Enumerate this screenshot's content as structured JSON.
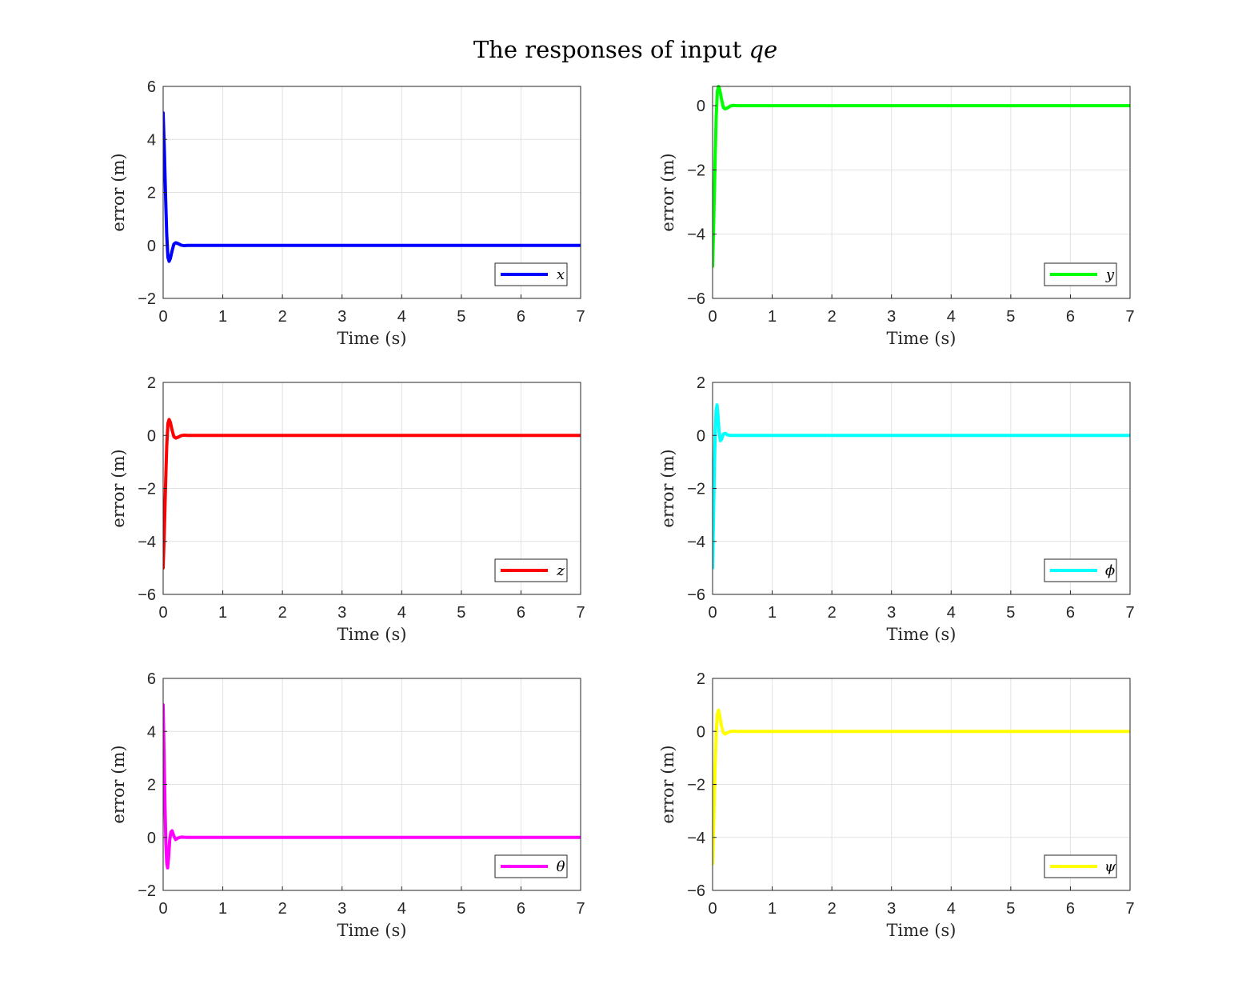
{
  "figure": {
    "title_prefix": "The responses of input ",
    "title_var": "qe"
  },
  "chart_data": [
    {
      "type": "line",
      "xlabel": "Time (s)",
      "ylabel": "error (m)",
      "xlim": [
        0,
        7
      ],
      "ylim": [
        -2,
        6
      ],
      "xticks": [
        0,
        1,
        2,
        3,
        4,
        5,
        6,
        7
      ],
      "yticks": [
        -2,
        0,
        2,
        4,
        6
      ],
      "grid": true,
      "legend_position": "bottom-right",
      "series": [
        {
          "name": "x",
          "color": "#0000ff",
          "x": [
            0,
            0.02,
            0.04,
            0.06,
            0.08,
            0.1,
            0.12,
            0.15,
            0.18,
            0.21,
            0.25,
            0.3,
            0.35,
            0.4,
            0.5,
            7
          ],
          "y": [
            5,
            3.6,
            1.9,
            0.4,
            -0.45,
            -0.6,
            -0.5,
            -0.2,
            0.05,
            0.1,
            0.07,
            0.01,
            -0.01,
            0,
            0,
            0
          ]
        }
      ]
    },
    {
      "type": "line",
      "xlabel": "Time (s)",
      "ylabel": "error (m)",
      "xlim": [
        0,
        7
      ],
      "ylim": [
        -6,
        0.6
      ],
      "xticks": [
        0,
        1,
        2,
        3,
        4,
        5,
        6,
        7
      ],
      "yticks": [
        -6,
        -4,
        -2,
        0
      ],
      "grid": true,
      "legend_position": "bottom-right",
      "series": [
        {
          "name": "y",
          "color": "#00ff00",
          "x": [
            0,
            0.02,
            0.04,
            0.06,
            0.08,
            0.1,
            0.12,
            0.15,
            0.18,
            0.21,
            0.25,
            0.3,
            0.35,
            0.4,
            0.5,
            7
          ],
          "y": [
            -5,
            -3.6,
            -1.9,
            -0.4,
            0.45,
            0.6,
            0.5,
            0.2,
            -0.05,
            -0.1,
            -0.07,
            -0.01,
            0.01,
            0,
            0,
            0
          ]
        }
      ]
    },
    {
      "type": "line",
      "xlabel": "Time (s)",
      "ylabel": "error (m)",
      "xlim": [
        0,
        7
      ],
      "ylim": [
        -6,
        2
      ],
      "xticks": [
        0,
        1,
        2,
        3,
        4,
        5,
        6,
        7
      ],
      "yticks": [
        -6,
        -4,
        -2,
        0,
        2
      ],
      "grid": true,
      "legend_position": "bottom-right",
      "series": [
        {
          "name": "z",
          "color": "#ff0000",
          "x": [
            0,
            0.02,
            0.04,
            0.06,
            0.08,
            0.1,
            0.12,
            0.15,
            0.18,
            0.21,
            0.25,
            0.3,
            0.35,
            0.4,
            0.5,
            7
          ],
          "y": [
            -5,
            -3.6,
            -1.9,
            -0.4,
            0.45,
            0.6,
            0.5,
            0.2,
            -0.05,
            -0.1,
            -0.07,
            -0.01,
            0.01,
            0,
            0,
            0
          ]
        }
      ]
    },
    {
      "type": "line",
      "xlabel": "Time (s)",
      "ylabel": "error (m)",
      "xlim": [
        0,
        7
      ],
      "ylim": [
        -6,
        2
      ],
      "xticks": [
        0,
        1,
        2,
        3,
        4,
        5,
        6,
        7
      ],
      "yticks": [
        -6,
        -4,
        -2,
        0,
        2
      ],
      "grid": true,
      "legend_position": "bottom-right",
      "series": [
        {
          "name": "ϕ",
          "color": "#00ffff",
          "x": [
            0,
            0.015,
            0.03,
            0.045,
            0.06,
            0.075,
            0.09,
            0.11,
            0.13,
            0.15,
            0.18,
            0.21,
            0.25,
            0.3,
            0.4,
            7
          ],
          "y": [
            -5,
            -3.2,
            -1.3,
            0.2,
            0.95,
            1.15,
            0.8,
            0.1,
            -0.2,
            -0.15,
            0.05,
            0.08,
            0.02,
            0,
            0,
            0
          ]
        }
      ]
    },
    {
      "type": "line",
      "xlabel": "Time (s)",
      "ylabel": "error (m)",
      "xlim": [
        0,
        7
      ],
      "ylim": [
        -2,
        6
      ],
      "xticks": [
        0,
        1,
        2,
        3,
        4,
        5,
        6,
        7
      ],
      "yticks": [
        -2,
        0,
        2,
        4,
        6
      ],
      "grid": true,
      "legend_position": "bottom-right",
      "series": [
        {
          "name": "θ",
          "color": "#ff00ff",
          "x": [
            0,
            0.015,
            0.03,
            0.045,
            0.06,
            0.075,
            0.09,
            0.11,
            0.13,
            0.15,
            0.18,
            0.21,
            0.25,
            0.3,
            0.4,
            7
          ],
          "y": [
            5,
            3.2,
            1.3,
            -0.2,
            -0.95,
            -1.15,
            -0.8,
            -0.1,
            0.2,
            0.25,
            0.05,
            -0.08,
            -0.02,
            0.01,
            0,
            0
          ]
        }
      ]
    },
    {
      "type": "line",
      "xlabel": "Time (s)",
      "ylabel": "error (m)",
      "xlim": [
        0,
        7
      ],
      "ylim": [
        -6,
        2
      ],
      "xticks": [
        0,
        1,
        2,
        3,
        4,
        5,
        6,
        7
      ],
      "yticks": [
        -6,
        -4,
        -2,
        0,
        2
      ],
      "grid": true,
      "legend_position": "bottom-right",
      "series": [
        {
          "name": "ψ",
          "color": "#ffff00",
          "x": [
            0,
            0.02,
            0.04,
            0.06,
            0.08,
            0.1,
            0.12,
            0.15,
            0.18,
            0.21,
            0.25,
            0.3,
            0.35,
            0.4,
            0.5,
            7
          ],
          "y": [
            -5,
            -3.4,
            -1.5,
            -0.1,
            0.65,
            0.8,
            0.6,
            0.2,
            -0.05,
            -0.1,
            -0.05,
            0,
            0.01,
            0,
            0,
            0
          ]
        }
      ]
    }
  ]
}
